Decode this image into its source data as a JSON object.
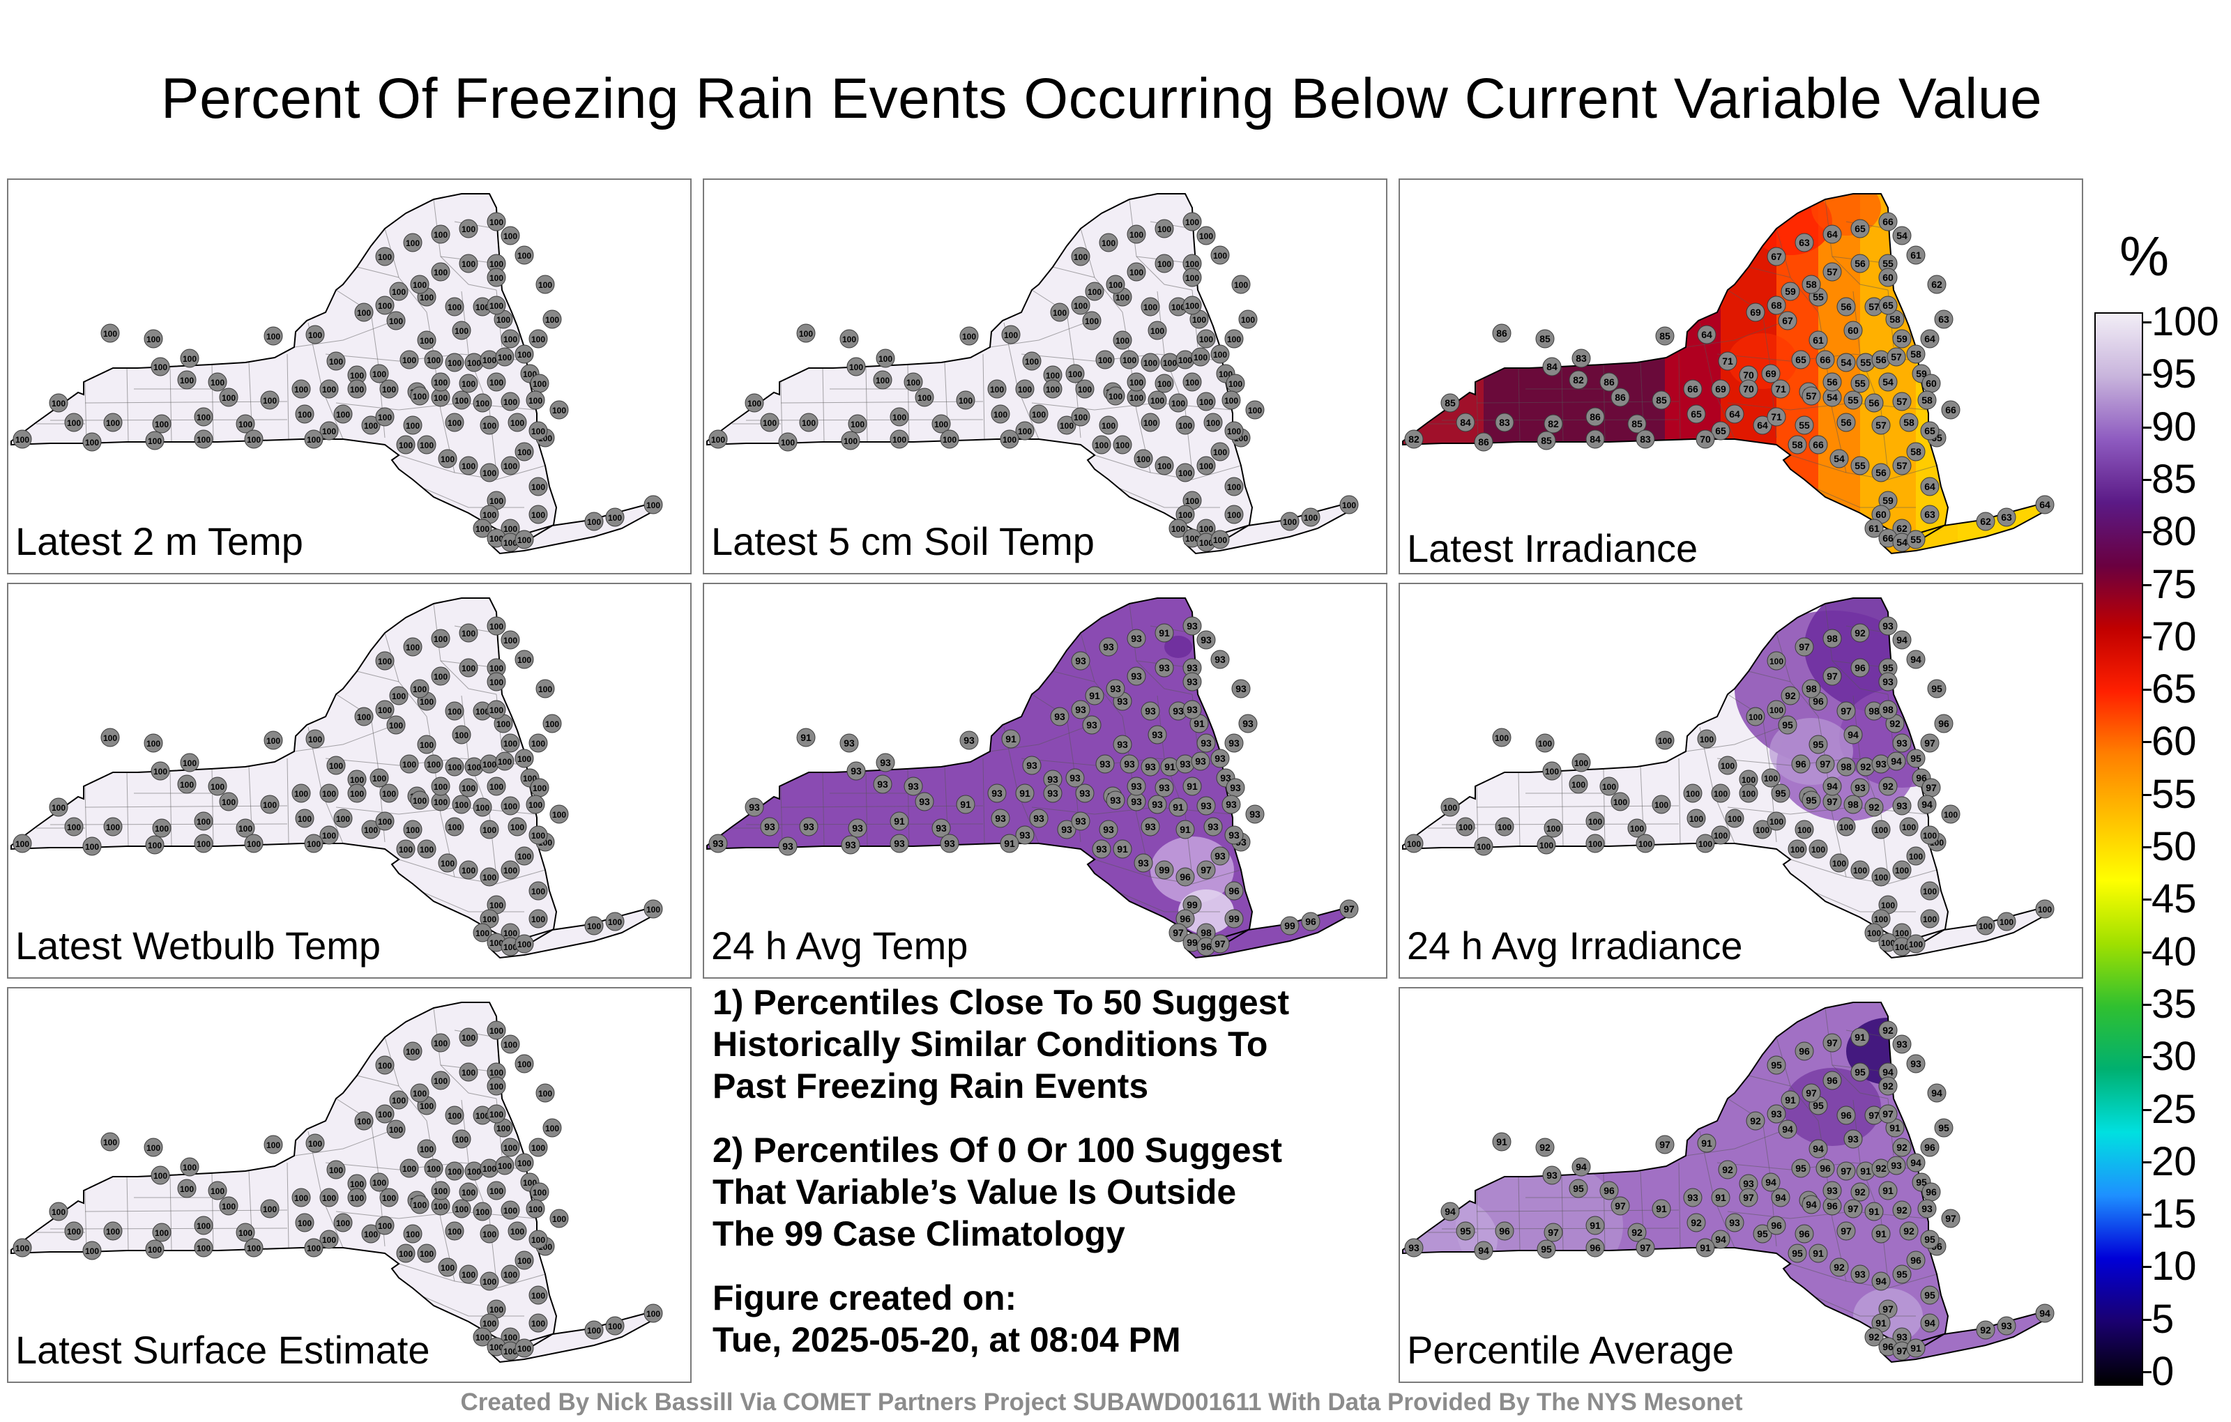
{
  "title": "Percent Of Freezing Rain Events Occurring Below Current Variable Value",
  "panels": [
    {
      "label": "Latest 2 m Temp",
      "scheme": "uniform",
      "base": 100
    },
    {
      "label": "Latest 5 cm Soil Temp",
      "scheme": "uniform",
      "base": 100
    },
    {
      "label": "Latest Irradiance",
      "scheme": "irradiance",
      "base": 65
    },
    {
      "label": "Latest Wetbulb Temp",
      "scheme": "uniform",
      "base": 100
    },
    {
      "label": "24 h Avg Temp",
      "scheme": "avgtemp",
      "base": 93
    },
    {
      "label": "24 h Avg Irradiance",
      "scheme": "avgirr",
      "base": 100
    },
    {
      "label": "Latest Surface Estimate",
      "scheme": "uniform",
      "base": 100
    },
    {
      "label": "Percentile Average",
      "scheme": "average",
      "base": 94
    }
  ],
  "notes": {
    "note1": [
      "1) Percentiles Close To 50 Suggest",
      "Historically Similar Conditions To",
      "Past Freezing Rain Events"
    ],
    "note2": [
      "2) Percentiles Of 0 Or 100 Suggest",
      "That Variable’s Value Is Outside",
      "The 99 Case Climatology"
    ],
    "created": [
      "Figure created on:",
      "Tue, 2025-05-20, at 08:04 PM"
    ]
  },
  "credit": "Created By Nick Bassill Via COMET Partners Project SUBAWD001611 With Data Provided By The NYS Mesonet",
  "colorbar": {
    "unit": "%",
    "ticks": [
      "100",
      "95",
      "90",
      "85",
      "80",
      "75",
      "70",
      "65",
      "60",
      "55",
      "50",
      "45",
      "40",
      "35",
      "30",
      "25",
      "20",
      "15",
      "10",
      "5",
      "0"
    ],
    "colors": [
      "#000000",
      "#1a0070",
      "#0000d8",
      "#1e90ff",
      "#00e0e0",
      "#00b070",
      "#30c030",
      "#a0e000",
      "#ffff00",
      "#ffc000",
      "#ff8000",
      "#ff2000",
      "#c00000",
      "#6a0040",
      "#5b1a86",
      "#8e5bc0",
      "#c8b4dc",
      "#f2eef6"
    ]
  },
  "map_colors": {
    "fill_100": "#f2eef6",
    "fill_93": "#8a4bb2",
    "fill_95": "#a170c4",
    "marker": "#888888"
  }
}
